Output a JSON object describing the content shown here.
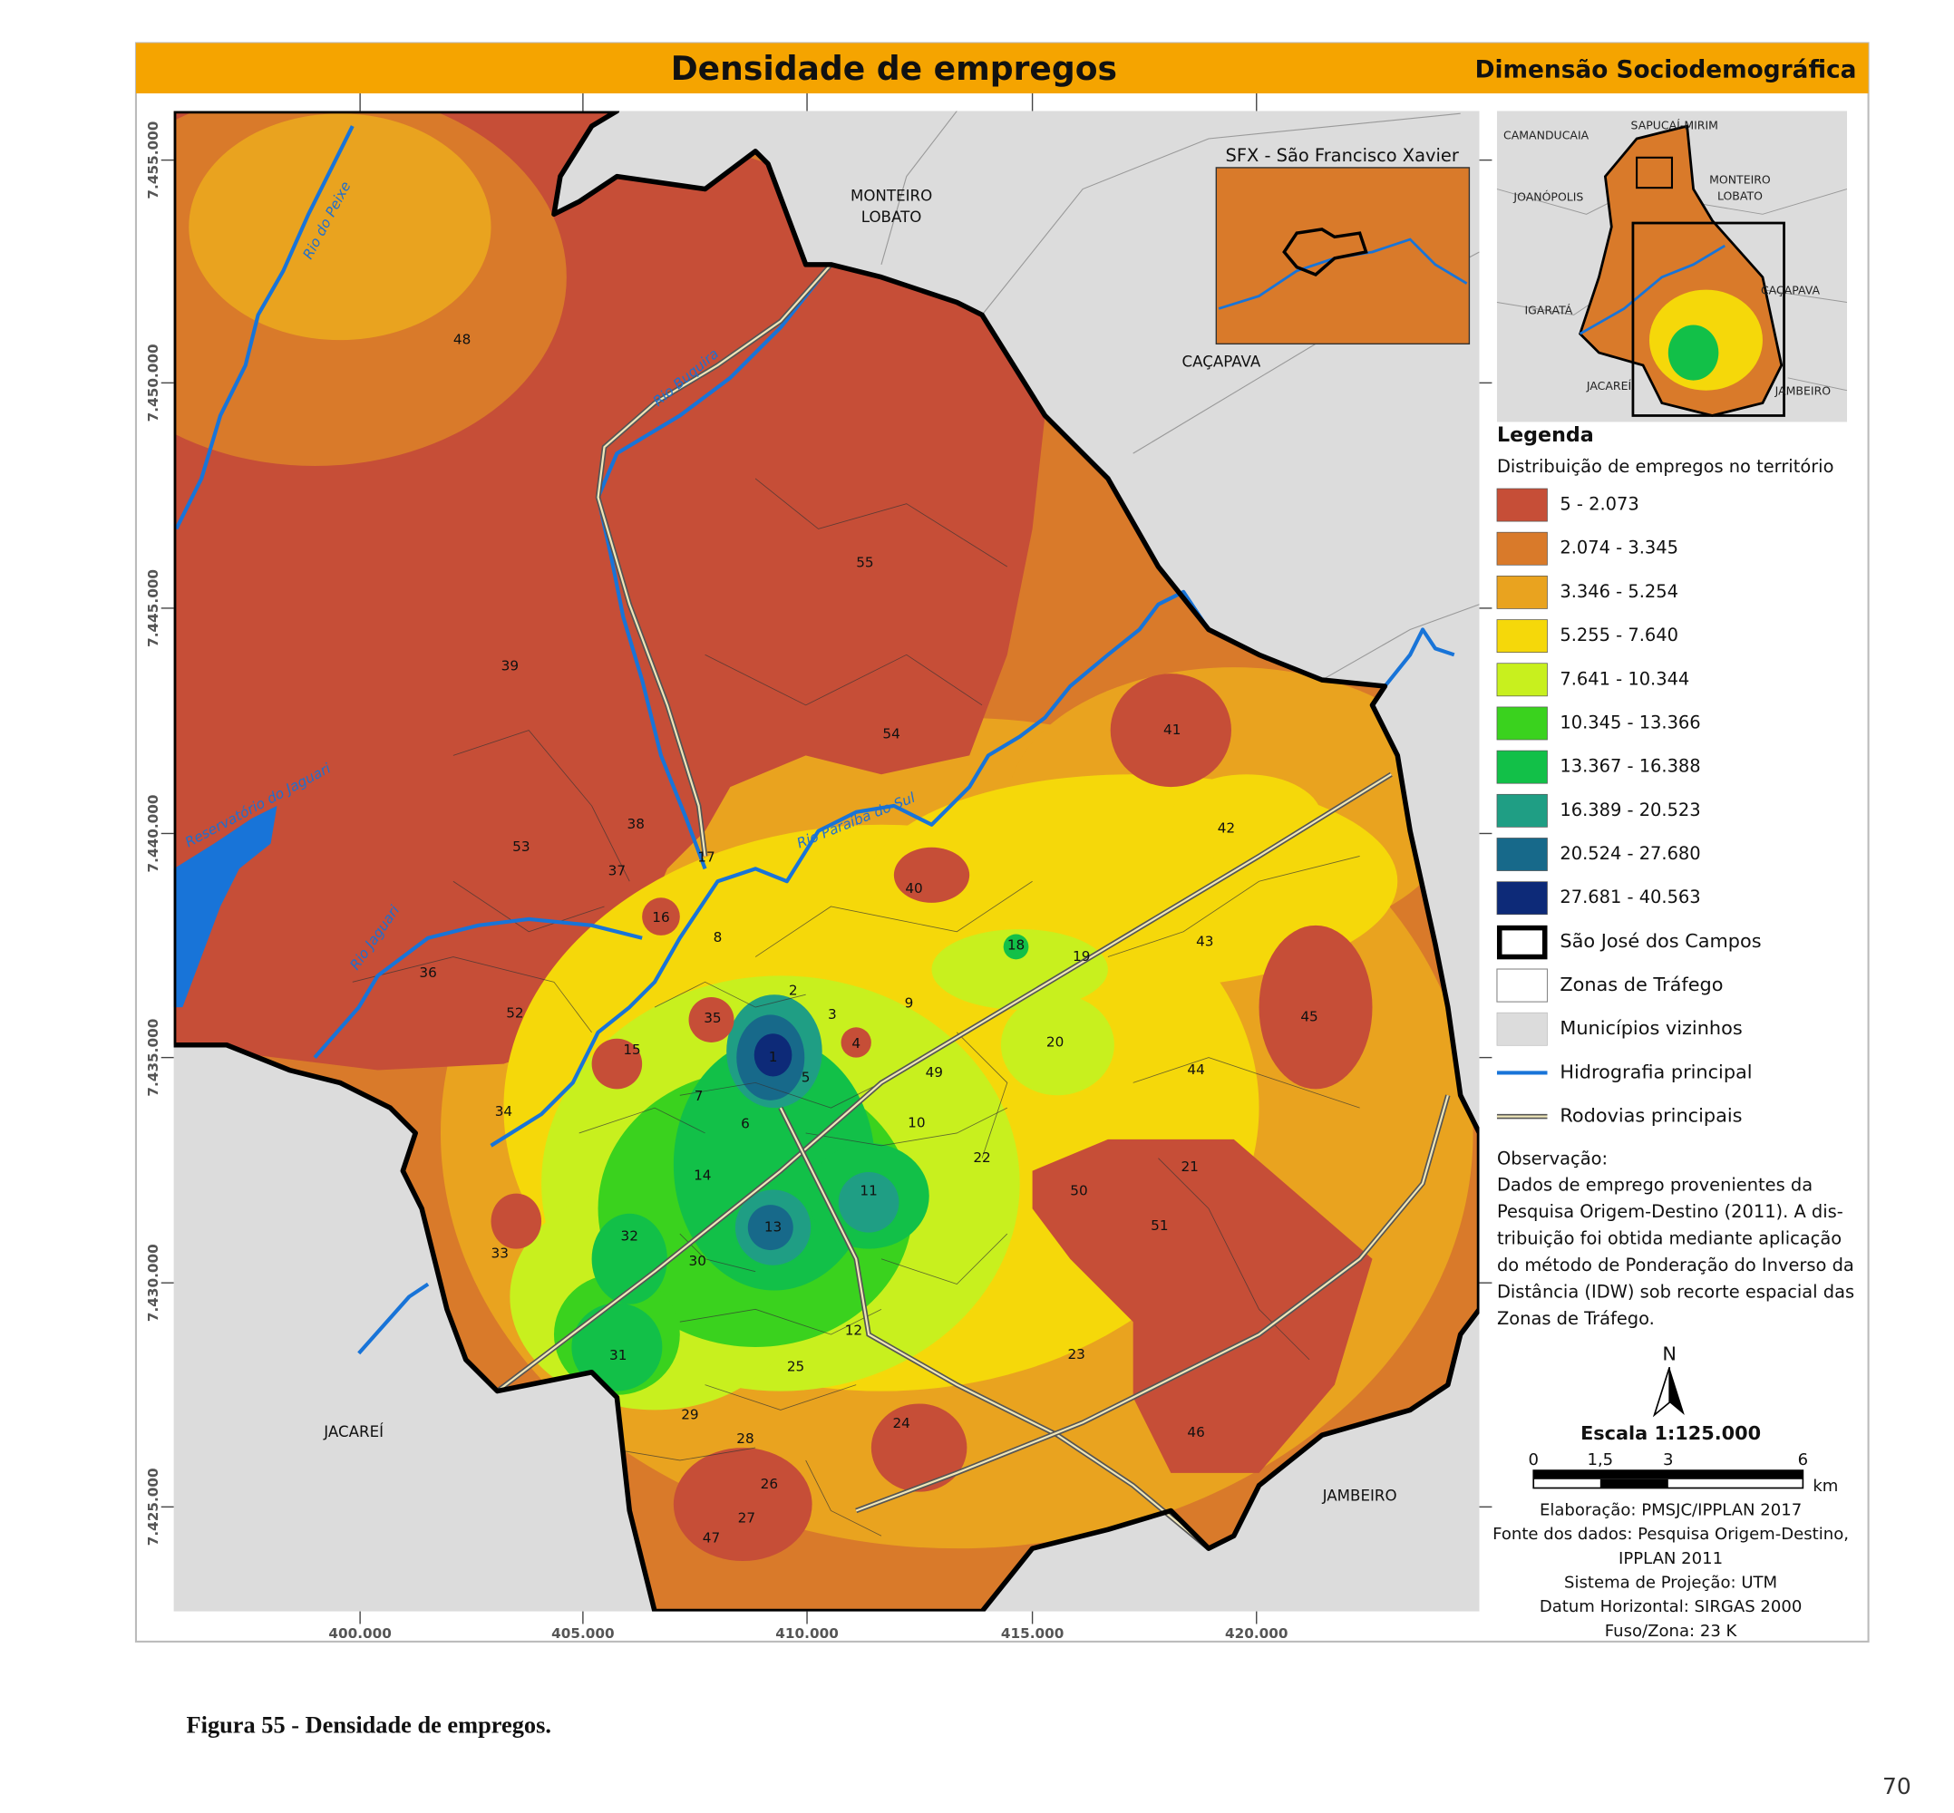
{
  "header": {
    "title": "Densidade de empregos",
    "subtitle": "Dimensão Sociodemográfica"
  },
  "map": {
    "x_labels": [
      "400.000",
      "405.000",
      "410.000",
      "415.000",
      "420.000"
    ],
    "y_labels": [
      "7.455.000",
      "7.450.000",
      "7.445.000",
      "7.440.000",
      "7.435.000",
      "7.430.000",
      "7.425.000"
    ],
    "zones": [
      "1",
      "2",
      "3",
      "4",
      "5",
      "6",
      "7",
      "8",
      "9",
      "10",
      "11",
      "12",
      "13",
      "14",
      "15",
      "16",
      "17",
      "18",
      "19",
      "20",
      "21",
      "22",
      "23",
      "24",
      "25",
      "26",
      "27",
      "28",
      "29",
      "30",
      "31",
      "32",
      "33",
      "34",
      "35",
      "36",
      "37",
      "38",
      "39",
      "40",
      "41",
      "42",
      "43",
      "44",
      "45",
      "46",
      "47",
      "48",
      "49",
      "50",
      "51",
      "52",
      "53",
      "54",
      "55"
    ],
    "places": [
      [
        "MONTEIRO",
        "LOBATO"
      ],
      [
        "CAÇAPAVA"
      ],
      [
        "JACAREÍ"
      ],
      [
        "JAMBEIRO"
      ]
    ],
    "rivers": [
      "Rio do Peixe",
      "Rio Buquira",
      "Reservatório do Jaguari",
      "Rio Jaguari",
      "Rio Paraíba do Sul"
    ],
    "inset_title": "SFX - São Francisco Xavier",
    "locator_places": [
      [
        "CAMANDUCAIA"
      ],
      [
        "SAPUCAÍ-MIRIM"
      ],
      [
        "JOANÓPOLIS"
      ],
      [
        "MONTEIRO",
        "LOBATO"
      ],
      [
        "IGARATÁ"
      ],
      [
        "CAÇAPAVA"
      ],
      [
        "JACAREÍ"
      ],
      [
        "JAMBEIRO"
      ]
    ]
  },
  "legend": {
    "title": "Legenda",
    "subtitle": "Distribuição de empregos no território",
    "classes": [
      {
        "label": "5 - 2.073",
        "color": "#c64e37"
      },
      {
        "label": "2.074 - 3.345",
        "color": "#d97a2a"
      },
      {
        "label": "3.346 - 5.254",
        "color": "#e9a31f"
      },
      {
        "label": "5.255 - 7.640",
        "color": "#f5d80a"
      },
      {
        "label": "7.641 - 10.344",
        "color": "#c8f01e"
      },
      {
        "label": "10.345 - 13.366",
        "color": "#3ad21e"
      },
      {
        "label": "13.367 - 16.388",
        "color": "#12c048"
      },
      {
        "label": "16.389 - 20.523",
        "color": "#1f9e84"
      },
      {
        "label": "20.524 - 27.680",
        "color": "#17698a"
      },
      {
        "label": "27.681 - 40.563",
        "color": "#0d2a78"
      }
    ],
    "layers": [
      "São José dos Campos",
      "Zonas de Tráfego",
      "Municípios vizinhos",
      "Hidrografia principal",
      "Rodovias principais"
    ]
  },
  "note": {
    "title": "Observação:",
    "lines": [
      "Dados de emprego provenientes da",
      "Pesquisa Origem-Destino (2011). A dis-",
      "tribuição foi obtida mediante aplicação",
      "do método de Ponderação do Inverso da",
      "Distância (IDW) sob recorte espacial das",
      "Zonas de Tráfego."
    ]
  },
  "north": "N",
  "scale": {
    "title": "Escala 1:125.000",
    "ticks": [
      "0",
      "1,5",
      "3",
      "6"
    ],
    "unit": "km"
  },
  "credits": [
    "Elaboração: PMSJC/IPPLAN 2017",
    "Fonte dos dados: Pesquisa Origem-Destino,",
    "IPPLAN 2011",
    "Sistema de Projeção: UTM",
    "Datum Horizontal: SIRGAS 2000",
    "Fuso/Zona: 23 K"
  ],
  "caption": "Figura 55 - Densidade de empregos.",
  "page_number": "70"
}
